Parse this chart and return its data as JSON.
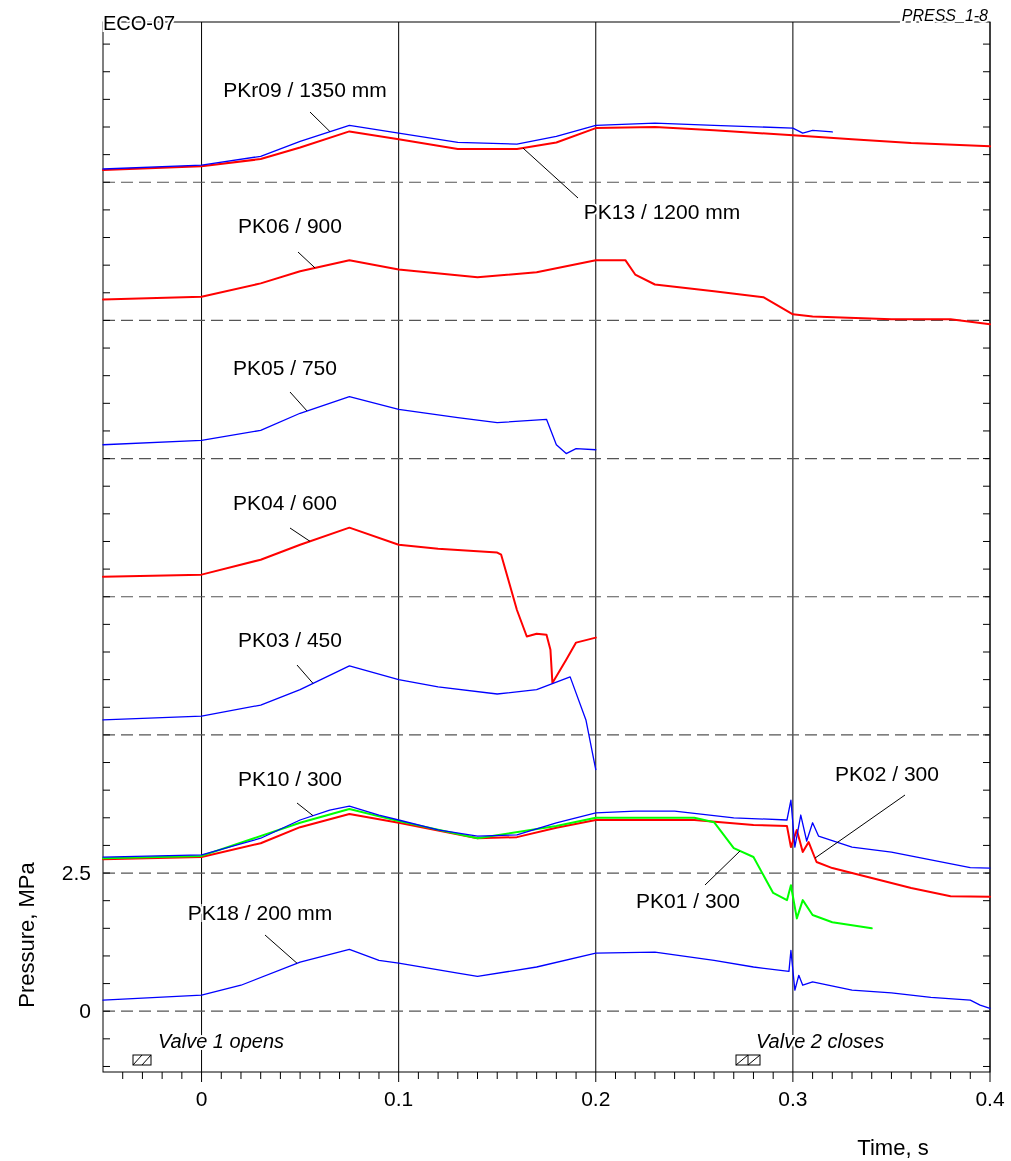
{
  "chart_data": {
    "type": "line",
    "xlabel": "Time,  s",
    "ylabel": "Pressure, MPa",
    "annotations": [
      "ECO-07",
      "PRESS_1-8",
      "Valve 1 opens",
      "Valve 2 closes"
    ],
    "xlim": [
      -0.05,
      0.4
    ],
    "ylim": [
      -1.1,
      17.9
    ],
    "xticks": [
      {
        "value": -0.04,
        "label": null
      },
      {
        "value": -0.03,
        "label": null
      },
      {
        "value": -0.02,
        "label": null
      },
      {
        "value": -0.01,
        "label": null
      },
      0,
      {
        "value": 0.01,
        "label": null
      },
      {
        "value": 0.02,
        "label": null
      },
      {
        "value": 0.03,
        "label": null
      },
      {
        "value": 0.04,
        "label": null
      },
      {
        "value": 0.05,
        "label": null
      },
      {
        "value": 0.06,
        "label": null
      },
      {
        "value": 0.07,
        "label": null
      },
      {
        "value": 0.08,
        "label": null
      },
      {
        "value": 0.09,
        "label": null
      },
      0.1,
      {
        "value": 0.11,
        "label": null
      },
      {
        "value": 0.12,
        "label": null
      },
      {
        "value": 0.13,
        "label": null
      },
      {
        "value": 0.14,
        "label": null
      },
      {
        "value": 0.15,
        "label": null
      },
      {
        "value": 0.16,
        "label": null
      },
      {
        "value": 0.17,
        "label": null
      },
      {
        "value": 0.18,
        "label": null
      },
      {
        "value": 0.19,
        "label": null
      },
      0.2,
      {
        "value": 0.21,
        "label": null
      },
      {
        "value": 0.22,
        "label": null
      },
      {
        "value": 0.23,
        "label": null
      },
      {
        "value": 0.24,
        "label": null
      },
      {
        "value": 0.25,
        "label": null
      },
      {
        "value": 0.26,
        "label": null
      },
      {
        "value": 0.27,
        "label": null
      },
      {
        "value": 0.28,
        "label": null
      },
      {
        "value": 0.29,
        "label": null
      },
      0.3,
      {
        "value": 0.31,
        "label": null
      },
      {
        "value": 0.32,
        "label": null
      },
      {
        "value": 0.33,
        "label": null
      },
      {
        "value": 0.34,
        "label": null
      },
      {
        "value": 0.35,
        "label": null
      },
      {
        "value": 0.36,
        "label": null
      },
      {
        "value": 0.37,
        "label": null
      },
      {
        "value": 0.38,
        "label": null
      },
      {
        "value": 0.39,
        "label": null
      },
      0.4
    ],
    "yticks": [
      {
        "value": -1,
        "label": null
      },
      {
        "value": -0.5,
        "label": null
      },
      0,
      {
        "value": 0.5,
        "label": null
      },
      {
        "value": 1,
        "label": null
      },
      {
        "value": 1.5,
        "label": null
      },
      {
        "value": 2,
        "label": null
      },
      2.5,
      {
        "value": 3,
        "label": null
      },
      {
        "value": 3.5,
        "label": null
      },
      {
        "value": 4,
        "label": null
      },
      {
        "value": 4.5,
        "label": null
      },
      {
        "value": 5,
        "label": null
      },
      {
        "value": 5.5,
        "label": null
      },
      {
        "value": 6,
        "label": null
      },
      {
        "value": 6.5,
        "label": null
      },
      {
        "value": 7,
        "label": null
      },
      {
        "value": 7.5,
        "label": null
      },
      {
        "value": 8,
        "label": null
      },
      {
        "value": 8.5,
        "label": null
      },
      {
        "value": 9,
        "label": null
      },
      {
        "value": 9.5,
        "label": null
      },
      {
        "value": 10,
        "label": null
      },
      {
        "value": 10.5,
        "label": null
      },
      {
        "value": 11,
        "label": null
      },
      {
        "value": 11.5,
        "label": null
      },
      {
        "value": 12,
        "label": null
      },
      {
        "value": 12.5,
        "label": null
      },
      {
        "value": 13,
        "label": null
      },
      {
        "value": 13.5,
        "label": null
      },
      {
        "value": 14,
        "label": null
      },
      {
        "value": 14.5,
        "label": null
      },
      {
        "value": 15,
        "label": null
      },
      {
        "value": 15.5,
        "label": null
      },
      {
        "value": 16,
        "label": null
      },
      {
        "value": 16.5,
        "label": null
      },
      {
        "value": 17,
        "label": null
      },
      {
        "value": 17.5,
        "label": null
      }
    ],
    "grid": "x",
    "ref_lines": [
      {
        "axis": "y",
        "value": 0,
        "color": "#555555",
        "line_style": "dashed"
      },
      {
        "axis": "y",
        "value": 2.5,
        "color": "#555555",
        "line_style": "dashed"
      },
      {
        "axis": "y",
        "value": 5,
        "color": "#555555",
        "line_style": "dashed"
      },
      {
        "axis": "y",
        "value": 7.5,
        "color": "#555555",
        "line_style": "dashed"
      },
      {
        "axis": "y",
        "value": 10,
        "color": "#555555",
        "line_style": "dashed"
      },
      {
        "axis": "y",
        "value": 12.5,
        "color": "#555555",
        "line_style": "dashed"
      },
      {
        "axis": "y",
        "value": 15,
        "color": "#555555",
        "line_style": "dashed"
      }
    ],
    "series": [
      {
        "name": "PKr09 / 1350 mm",
        "color": "#0000ff",
        "x": [
          -0.05,
          0,
          0.03,
          0.05,
          0.075,
          0.1,
          0.13,
          0.16,
          0.18,
          0.2,
          0.23,
          0.26,
          0.3,
          0.305,
          0.31,
          0.32
        ],
        "values": [
          15.24,
          15.31,
          15.47,
          15.74,
          16.03,
          15.89,
          15.72,
          15.69,
          15.83,
          16.03,
          16.07,
          16.03,
          15.98,
          15.89,
          15.94,
          15.91
        ]
      },
      {
        "name": "PK13 / 1200 mm",
        "color": "#ff0000",
        "x": [
          -0.05,
          0,
          0.03,
          0.05,
          0.075,
          0.1,
          0.13,
          0.16,
          0.18,
          0.2,
          0.23,
          0.26,
          0.3,
          0.33,
          0.36,
          0.4
        ],
        "values": [
          15.22,
          15.29,
          15.42,
          15.63,
          15.92,
          15.78,
          15.6,
          15.6,
          15.72,
          15.98,
          16.0,
          15.94,
          15.85,
          15.78,
          15.71,
          15.65
        ]
      },
      {
        "name": "PK06 / 900",
        "color": "#ff0000",
        "x": [
          -0.05,
          0,
          0.03,
          0.05,
          0.075,
          0.1,
          0.14,
          0.17,
          0.2,
          0.215,
          0.22,
          0.23,
          0.26,
          0.285,
          0.3,
          0.31,
          0.35,
          0.38,
          0.4
        ],
        "values": [
          12.88,
          12.93,
          13.17,
          13.39,
          13.59,
          13.42,
          13.28,
          13.37,
          13.59,
          13.59,
          13.33,
          13.15,
          13.03,
          12.92,
          12.61,
          12.57,
          12.52,
          12.52,
          12.43
        ]
      },
      {
        "name": "PK05 / 750",
        "color": "#0000ff",
        "x": [
          -0.05,
          0,
          0.03,
          0.05,
          0.075,
          0.1,
          0.13,
          0.15,
          0.175,
          0.18,
          0.185,
          0.19,
          0.2
        ],
        "values": [
          10.25,
          10.33,
          10.51,
          10.82,
          11.12,
          10.89,
          10.74,
          10.65,
          10.71,
          10.25,
          10.09,
          10.18,
          10.16
        ]
      },
      {
        "name": "PK04 / 600",
        "color": "#ff0000",
        "x": [
          -0.05,
          0,
          0.03,
          0.05,
          0.075,
          0.1,
          0.12,
          0.15,
          0.152,
          0.16,
          0.165,
          0.17,
          0.175,
          0.177,
          0.178,
          0.185,
          0.19,
          0.2
        ],
        "values": [
          7.86,
          7.9,
          8.17,
          8.44,
          8.75,
          8.44,
          8.37,
          8.3,
          8.26,
          7.26,
          6.78,
          6.83,
          6.81,
          6.54,
          5.94,
          6.36,
          6.67,
          6.76
        ]
      },
      {
        "name": "PK03 / 450",
        "color": "#0000ff",
        "x": [
          -0.05,
          0,
          0.03,
          0.05,
          0.075,
          0.1,
          0.12,
          0.15,
          0.17,
          0.187,
          0.195,
          0.2
        ],
        "values": [
          5.27,
          5.34,
          5.54,
          5.82,
          6.25,
          6.0,
          5.87,
          5.74,
          5.82,
          6.05,
          5.27,
          4.37
        ]
      },
      {
        "name": "PK10 / 300",
        "color": "#0000ff",
        "x": [
          -0.05,
          0,
          0.03,
          0.05,
          0.065,
          0.075,
          0.09,
          0.1,
          0.12,
          0.14,
          0.16,
          0.18,
          0.2,
          0.22,
          0.24,
          0.27,
          0.297,
          0.299,
          0.301,
          0.304,
          0.307,
          0.31,
          0.313,
          0.33,
          0.35,
          0.37,
          0.39,
          0.4
        ],
        "values": [
          2.79,
          2.83,
          3.13,
          3.46,
          3.64,
          3.71,
          3.55,
          3.46,
          3.28,
          3.17,
          3.19,
          3.41,
          3.59,
          3.62,
          3.62,
          3.5,
          3.46,
          3.82,
          2.97,
          3.55,
          3.08,
          3.41,
          3.17,
          2.97,
          2.88,
          2.74,
          2.6,
          2.59
        ]
      },
      {
        "name": "PK02 / 300",
        "color": "#ff0000",
        "x": [
          -0.05,
          0,
          0.03,
          0.05,
          0.075,
          0.1,
          0.14,
          0.16,
          0.18,
          0.2,
          0.25,
          0.28,
          0.297,
          0.299,
          0.302,
          0.305,
          0.308,
          0.312,
          0.32,
          0.34,
          0.36,
          0.38,
          0.4
        ],
        "values": [
          2.75,
          2.79,
          3.04,
          3.33,
          3.57,
          3.41,
          3.13,
          3.15,
          3.32,
          3.46,
          3.46,
          3.37,
          3.35,
          2.97,
          3.28,
          2.88,
          3.06,
          2.7,
          2.59,
          2.41,
          2.23,
          2.08,
          2.07
        ]
      },
      {
        "name": "PK01 / 300",
        "color": "#00ff00",
        "x": [
          -0.05,
          0,
          0.05,
          0.075,
          0.1,
          0.14,
          0.18,
          0.2,
          0.25,
          0.26,
          0.27,
          0.28,
          0.29,
          0.297,
          0.299,
          0.302,
          0.305,
          0.31,
          0.32,
          0.34
        ],
        "values": [
          2.77,
          2.81,
          3.41,
          3.66,
          3.44,
          3.13,
          3.35,
          3.5,
          3.5,
          3.42,
          2.95,
          2.79,
          2.14,
          2.01,
          2.28,
          1.68,
          2.01,
          1.74,
          1.61,
          1.5
        ]
      },
      {
        "name": "PK18 / 200 mm",
        "color": "#0000ff",
        "x": [
          -0.05,
          0,
          0.02,
          0.05,
          0.075,
          0.09,
          0.1,
          0.13,
          0.14,
          0.17,
          0.2,
          0.23,
          0.26,
          0.28,
          0.298,
          0.299,
          0.301,
          0.303,
          0.305,
          0.31,
          0.33,
          0.35,
          0.37,
          0.39,
          0.395,
          0.4
        ],
        "values": [
          0.2,
          0.29,
          0.47,
          0.89,
          1.12,
          0.92,
          0.87,
          0.69,
          0.63,
          0.8,
          1.05,
          1.07,
          0.92,
          0.8,
          0.72,
          1.1,
          0.38,
          0.65,
          0.47,
          0.53,
          0.38,
          0.33,
          0.25,
          0.2,
          0.11,
          0.05
        ]
      }
    ]
  }
}
